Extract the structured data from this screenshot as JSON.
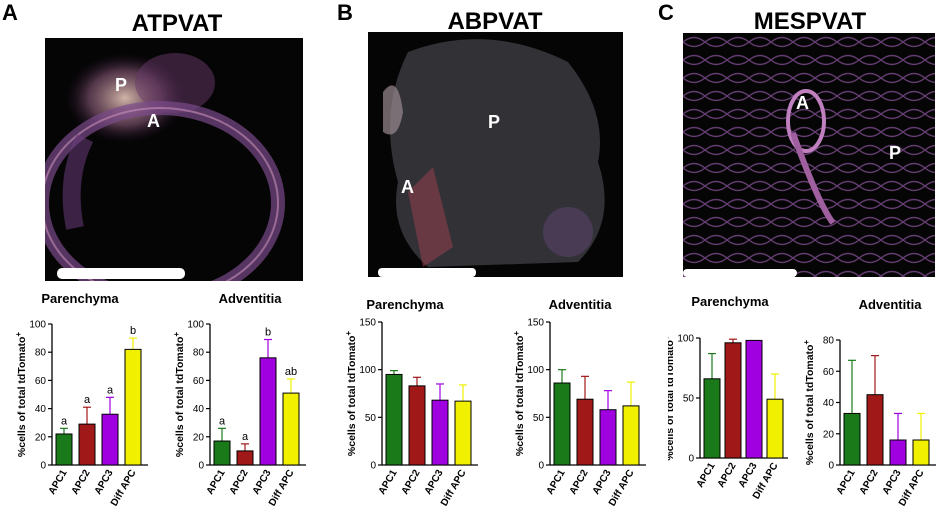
{
  "colors": {
    "APC1": "#1a7a1a",
    "APC2": "#a01818",
    "APC3": "#a000e0",
    "Diff APC": "#f0f000"
  },
  "panels": [
    {
      "letter": "A",
      "title": "ATPVAT",
      "image_labels": [
        "P",
        "A"
      ],
      "charts": [
        {
          "title": "Parenchyma",
          "ylabel": "%cells of total tdTomato",
          "ylabel_sup": "+",
          "chart_data": {
            "type": "bar",
            "categories": [
              "APC1",
              "APC2",
              "APC3",
              "Diff APC"
            ],
            "values": [
              22,
              29,
              36,
              82
            ],
            "errors": [
              4,
              12,
              12,
              8
            ],
            "letters": [
              "a",
              "a",
              "a",
              "b"
            ],
            "ylim": [
              0,
              100
            ],
            "yticks": [
              0,
              20,
              40,
              60,
              80,
              100
            ]
          }
        },
        {
          "title": "Adventitia",
          "ylabel": "%cells of total tdTomato",
          "ylabel_sup": "+",
          "chart_data": {
            "type": "bar",
            "categories": [
              "APC1",
              "APC2",
              "APC3",
              "Diff APC"
            ],
            "values": [
              17,
              10,
              76,
              51
            ],
            "errors": [
              9,
              5,
              13,
              10
            ],
            "letters": [
              "a",
              "a",
              "b",
              "ab"
            ],
            "ylim": [
              0,
              100
            ],
            "yticks": [
              0,
              20,
              40,
              60,
              80,
              100
            ]
          }
        }
      ]
    },
    {
      "letter": "B",
      "title": "ABPVAT",
      "image_labels": [
        "P",
        "A"
      ],
      "charts": [
        {
          "title": "Parenchyma",
          "ylabel": "%cells of total tdTomato",
          "ylabel_sup": "+",
          "chart_data": {
            "type": "bar",
            "categories": [
              "APC1",
              "APC2",
              "APC3",
              "Diff APC"
            ],
            "values": [
              95,
              83,
              68,
              67
            ],
            "errors": [
              4,
              9,
              17,
              17
            ],
            "letters": [],
            "ylim": [
              0,
              150
            ],
            "yticks": [
              0,
              50,
              100,
              150
            ]
          }
        },
        {
          "title": "Adventitia",
          "ylabel": "%cells of total tdTomato",
          "ylabel_sup": "+",
          "chart_data": {
            "type": "bar",
            "categories": [
              "APC1",
              "APC2",
              "APC3",
              "Diff APC"
            ],
            "values": [
              86,
              69,
              58,
              62
            ],
            "errors": [
              14,
              24,
              20,
              25
            ],
            "letters": [],
            "ylim": [
              0,
              150
            ],
            "yticks": [
              0,
              50,
              100,
              150
            ]
          }
        }
      ]
    },
    {
      "letter": "C",
      "title": "MESPVAT",
      "image_labels": [
        "A",
        "P"
      ],
      "charts": [
        {
          "title": "Parenchyma",
          "ylabel": "%cells of total tdTomato",
          "ylabel_sup": "+",
          "chart_data": {
            "type": "bar",
            "categories": [
              "APC1",
              "APC2",
              "APC3",
              "Diff APC"
            ],
            "values": [
              66,
              96,
              98,
              49
            ],
            "errors": [
              21,
              3,
              0,
              21
            ],
            "letters": [],
            "ylim": [
              0,
              100
            ],
            "yticks": [
              0,
              50,
              100
            ]
          }
        },
        {
          "title": "Adventitia",
          "ylabel": "%cells of total tdTomato",
          "ylabel_sup": "+",
          "chart_data": {
            "type": "bar",
            "categories": [
              "APC1",
              "APC2",
              "APC3",
              "Diff APC"
            ],
            "values": [
              33,
              45,
              16,
              16
            ],
            "errors": [
              34,
              25,
              17,
              17
            ],
            "letters": [],
            "ylim": [
              0,
              80
            ],
            "yticks": [
              0,
              20,
              40,
              60,
              80
            ]
          }
        }
      ]
    }
  ]
}
